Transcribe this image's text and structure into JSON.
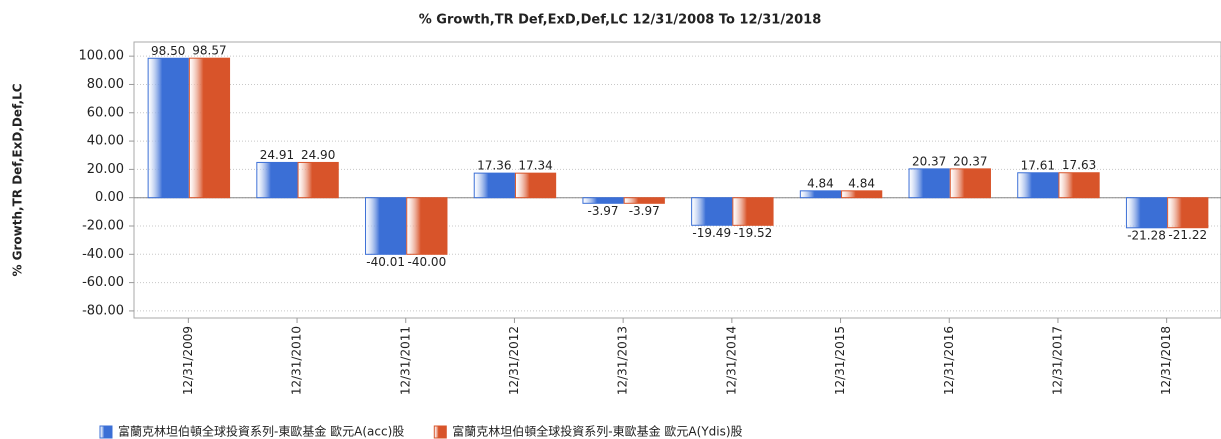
{
  "chart_data": {
    "type": "bar",
    "title": "% Growth,TR Def,ExD,Def,LC 12/31/2008 To 12/31/2018",
    "y_label": "% Growth,TR Def,ExD,Def,LC",
    "categories": [
      "12/31/2009",
      "12/31/2010",
      "12/31/2011",
      "12/31/2012",
      "12/31/2013",
      "12/31/2014",
      "12/31/2015",
      "12/31/2016",
      "12/31/2017",
      "12/31/2018"
    ],
    "series": [
      {
        "name": "富蘭克林坦伯頓全球投資系列-東歐基金 歐元A(acc)股",
        "color": "#3b6fd6",
        "values": [
          98.5,
          24.91,
          -40.01,
          17.36,
          -3.97,
          -19.49,
          4.84,
          20.37,
          17.61,
          -21.28
        ],
        "value_labels": [
          "98.50",
          "24.91",
          "-40.01",
          "17.36",
          "-3.97",
          "-19.49",
          "4.84",
          "20.37",
          "17.61",
          "-21.28"
        ]
      },
      {
        "name": "富蘭克林坦伯頓全球投資系列-東歐基金 歐元A(Ydis)股",
        "color": "#d8542a",
        "values": [
          98.57,
          24.9,
          -40,
          17.34,
          -3.97,
          -19.52,
          4.84,
          20.37,
          17.63,
          -21.22
        ],
        "value_labels": [
          "98.57",
          "24.90",
          "-40.00",
          "17.34",
          "-3.97",
          "-19.52",
          "4.84",
          "20.37",
          "17.63",
          "-21.22"
        ]
      }
    ],
    "ylim": [
      -85,
      110
    ],
    "yticks": [
      {
        "value": -80,
        "label": "-80.00"
      },
      {
        "value": -60,
        "label": "-60.00"
      },
      {
        "value": -40,
        "label": "-40.00"
      },
      {
        "value": -20,
        "label": "-20.00"
      },
      {
        "value": 0,
        "label": "0.00"
      },
      {
        "value": 20,
        "label": "20.00"
      },
      {
        "value": 40,
        "label": "40.00"
      },
      {
        "value": 60,
        "label": "60.00"
      },
      {
        "value": 80,
        "label": "80.00"
      },
      {
        "value": 100,
        "label": "100.00"
      }
    ],
    "grid": true,
    "legend": "bottom"
  }
}
